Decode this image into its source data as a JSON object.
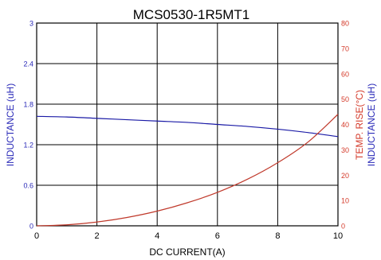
{
  "chart_data": {
    "type": "line",
    "title": "MCS0530-1R5MT1",
    "xlabel": "DC CURRENT(A)",
    "ylabel_left": "INDUCTANCE (uH)",
    "ylabel_right_top": "TEMP. RISE(°C)",
    "ylabel_right_bottom": "INDUCTANCE (uH)",
    "xlim": [
      0,
      10
    ],
    "ylim_left": [
      0,
      3
    ],
    "ylim_right": [
      0,
      80
    ],
    "x_ticks": [
      "0",
      "2",
      "4",
      "6",
      "8",
      "10"
    ],
    "y_ticks_left": [
      "0",
      "0.6",
      "1.2",
      "1.8",
      "2.4",
      "3"
    ],
    "y_ticks_right": [
      "0",
      "10",
      "20",
      "30",
      "40",
      "50",
      "60",
      "70",
      "80"
    ],
    "grid": true,
    "colors": {
      "inductance": "#1a1aa6",
      "temperature": "#c0392b",
      "left_axis": "#2a2ab8",
      "right_axis": "#d43a2a",
      "grid": "#000000"
    },
    "series": [
      {
        "key": "inductance",
        "axis": "left",
        "x": [
          0,
          1,
          2,
          3,
          4,
          5,
          6,
          7,
          8,
          9,
          10
        ],
        "values": [
          1.62,
          1.61,
          1.59,
          1.57,
          1.55,
          1.53,
          1.5,
          1.47,
          1.43,
          1.38,
          1.32
        ]
      },
      {
        "key": "temperature",
        "axis": "right",
        "x": [
          0,
          1,
          2,
          3,
          4,
          5,
          6,
          7,
          8,
          9,
          10
        ],
        "values": [
          0,
          0.4,
          1.5,
          3.3,
          5.8,
          9.1,
          13.2,
          18.4,
          24.9,
          33.0,
          44.0
        ]
      }
    ]
  }
}
